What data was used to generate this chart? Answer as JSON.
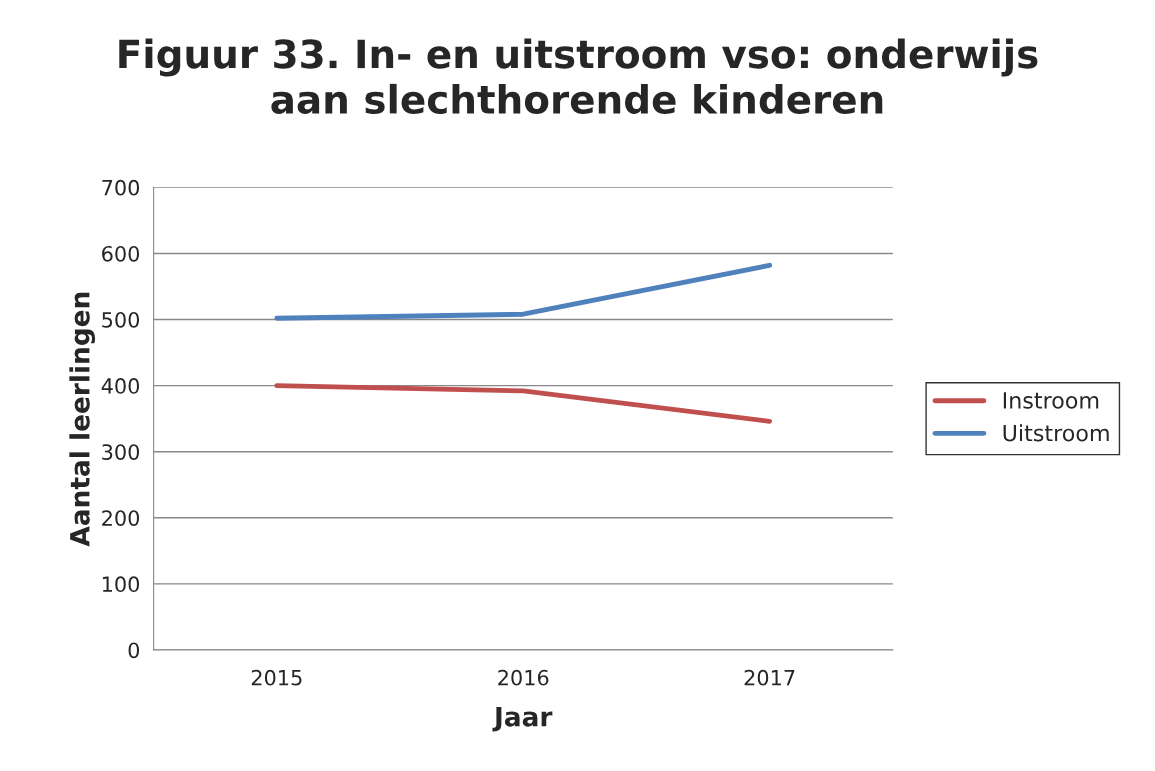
{
  "chart_data": {
    "type": "line",
    "title": "Figuur 33. In- en uitstroom vso: onderwijs\naan slechthorende kinderen",
    "xlabel": "Jaar",
    "ylabel": "Aantal leerlingen",
    "categories": [
      "2015",
      "2016",
      "2017"
    ],
    "series": [
      {
        "name": "Instroom",
        "color": "#c0504d",
        "values": [
          400,
          392,
          346
        ]
      },
      {
        "name": "Uitstroom",
        "color": "#4f81bd",
        "values": [
          502,
          508,
          582
        ]
      }
    ],
    "ylim": [
      0,
      700
    ],
    "yticks": [
      0,
      100,
      200,
      300,
      400,
      500,
      600,
      700
    ],
    "grid": "y",
    "legend": "right",
    "marker": "none",
    "line_style": "solid"
  }
}
